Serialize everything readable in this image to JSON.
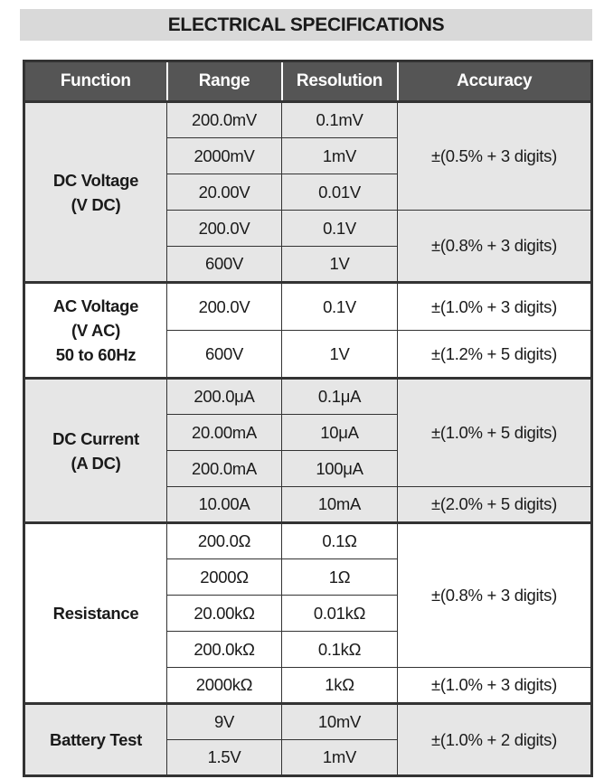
{
  "header": {
    "title": "ELECTRICAL SPECIFICATIONS"
  },
  "table": {
    "columns": [
      "Function",
      "Range",
      "Resolution",
      "Accuracy"
    ],
    "groups": [
      {
        "function": [
          "DC Voltage",
          "(V DC)"
        ],
        "rows": [
          [
            "200.0mV",
            "0.1mV",
            "±(0.5% + 3 digits)"
          ],
          [
            "2000mV",
            "1mV",
            null
          ],
          [
            "20.00V",
            "0.01V",
            null
          ],
          [
            "200.0V",
            "0.1V",
            "±(0.8% + 3 digits)"
          ],
          [
            "600V",
            "1V",
            null
          ]
        ]
      },
      {
        "function": [
          "AC Voltage",
          "(V AC)",
          "50 to 60Hz"
        ],
        "rows": [
          [
            "200.0V",
            "0.1V",
            "±(1.0% + 3 digits)"
          ],
          [
            "600V",
            "1V",
            "±(1.2% + 5 digits)"
          ]
        ]
      },
      {
        "function": [
          "DC Current",
          "(A DC)"
        ],
        "rows": [
          [
            "200.0μA",
            "0.1μA",
            "±(1.0% + 5 digits)"
          ],
          [
            "20.00mA",
            "10μA",
            null
          ],
          [
            "200.0mA",
            "100μA",
            null
          ],
          [
            "10.00A",
            "10mA",
            "±(2.0% + 5 digits)"
          ]
        ]
      },
      {
        "function": [
          "Resistance"
        ],
        "rows": [
          [
            "200.0Ω",
            "0.1Ω",
            "±(0.8% + 3 digits)"
          ],
          [
            "2000Ω",
            "1Ω",
            null
          ],
          [
            "20.00kΩ",
            "0.01kΩ",
            null
          ],
          [
            "200.0kΩ",
            "0.1kΩ",
            null
          ],
          [
            "2000kΩ",
            "1kΩ",
            "±(1.0% + 3 digits)"
          ]
        ]
      },
      {
        "function": [
          "Battery Test"
        ],
        "rows": [
          [
            "9V",
            "10mV",
            "±(1.0% + 2 digits)"
          ],
          [
            "1.5V",
            "1mV",
            null
          ]
        ]
      }
    ]
  }
}
